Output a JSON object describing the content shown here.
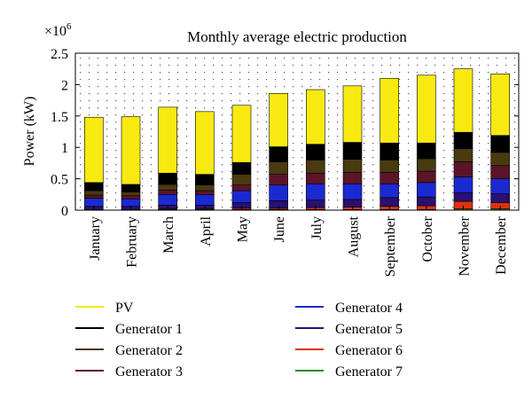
{
  "chart_data": {
    "type": "bar",
    "stacked": true,
    "title": "Monthly average electric production",
    "ylabel": "Power (kW)",
    "xlabel": "",
    "y_multiplier_label": "×10",
    "y_multiplier_exp": "6",
    "ylim": [
      0,
      2.5
    ],
    "yticks": [
      0,
      0.5,
      1,
      1.5,
      2,
      2.5
    ],
    "ytick_labels": [
      "0",
      "0.5",
      "1",
      "1.5",
      "2",
      "2.5"
    ],
    "grid": "dotted",
    "legend_position": "below",
    "categories": [
      "January",
      "February",
      "March",
      "April",
      "May",
      "June",
      "July",
      "August",
      "September",
      "October",
      "November",
      "December"
    ],
    "series": [
      {
        "name": "Generator 7",
        "color": "#2e8b2e",
        "values": [
          0.01,
          0.01,
          0.01,
          0.01,
          0.01,
          0.01,
          0.01,
          0.01,
          0.01,
          0.01,
          0.02,
          0.02
        ]
      },
      {
        "name": "Generator 6",
        "color": "#e03010",
        "values": [
          0.0,
          0.0,
          0.01,
          0.01,
          0.02,
          0.02,
          0.03,
          0.04,
          0.05,
          0.06,
          0.12,
          0.1
        ]
      },
      {
        "name": "Generator 5",
        "color": "#2a1070",
        "values": [
          0.05,
          0.05,
          0.06,
          0.06,
          0.09,
          0.12,
          0.12,
          0.12,
          0.14,
          0.14,
          0.14,
          0.14
        ]
      },
      {
        "name": "Generator 4",
        "color": "#1a2ad0",
        "values": [
          0.13,
          0.12,
          0.17,
          0.17,
          0.19,
          0.25,
          0.26,
          0.25,
          0.22,
          0.23,
          0.25,
          0.24
        ]
      },
      {
        "name": "Generator 3",
        "color": "#5c1428",
        "values": [
          0.05,
          0.05,
          0.07,
          0.06,
          0.09,
          0.17,
          0.17,
          0.18,
          0.18,
          0.18,
          0.24,
          0.21
        ]
      },
      {
        "name": "Generator 2",
        "color": "#4a3a10",
        "values": [
          0.07,
          0.06,
          0.09,
          0.09,
          0.17,
          0.2,
          0.21,
          0.21,
          0.2,
          0.2,
          0.21,
          0.21
        ]
      },
      {
        "name": "Generator 1",
        "color": "#000000",
        "values": [
          0.13,
          0.12,
          0.18,
          0.17,
          0.19,
          0.24,
          0.25,
          0.27,
          0.27,
          0.25,
          0.26,
          0.27
        ]
      },
      {
        "name": "PV",
        "color": "#f8ea10",
        "values": [
          1.04,
          1.08,
          1.05,
          1.0,
          0.91,
          0.85,
          0.87,
          0.9,
          1.03,
          1.08,
          1.01,
          0.98
        ]
      }
    ],
    "legend": [
      {
        "name": "PV",
        "color": "#f8ea10"
      },
      {
        "name": "Generator 4",
        "color": "#1a2ad0"
      },
      {
        "name": "Generator 1",
        "color": "#000000"
      },
      {
        "name": "Generator 5",
        "color": "#2a1070"
      },
      {
        "name": "Generator 2",
        "color": "#4a3a10"
      },
      {
        "name": "Generator 6",
        "color": "#e03010"
      },
      {
        "name": "Generator 3",
        "color": "#5c1428"
      },
      {
        "name": "Generator 7",
        "color": "#2e8b2e"
      }
    ]
  }
}
